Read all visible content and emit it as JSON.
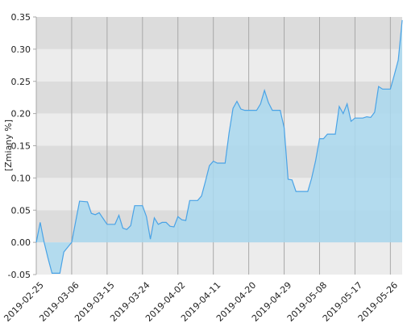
{
  "chart_data": {
    "type": "area",
    "y_label": "[Zmiany %]",
    "x": [
      "2019-02-25",
      "2019-02-26",
      "2019-02-27",
      "2019-02-28",
      "2019-03-01",
      "2019-03-03",
      "2019-03-04",
      "2019-03-06",
      "2019-03-08",
      "2019-03-10",
      "2019-03-11",
      "2019-03-12",
      "2019-03-13",
      "2019-03-14",
      "2019-03-15",
      "2019-03-17",
      "2019-03-18",
      "2019-03-19",
      "2019-03-20",
      "2019-03-21",
      "2019-03-22",
      "2019-03-24",
      "2019-03-25",
      "2019-03-26",
      "2019-03-27",
      "2019-03-28",
      "2019-03-29",
      "2019-03-30",
      "2019-03-31",
      "2019-04-01",
      "2019-04-02",
      "2019-04-03",
      "2019-04-04",
      "2019-04-05",
      "2019-04-07",
      "2019-04-08",
      "2019-04-09",
      "2019-04-10",
      "2019-04-11",
      "2019-04-12",
      "2019-04-14",
      "2019-04-15",
      "2019-04-16",
      "2019-04-17",
      "2019-04-18",
      "2019-04-19",
      "2019-04-21",
      "2019-04-22",
      "2019-04-23",
      "2019-04-24",
      "2019-04-25",
      "2019-04-26",
      "2019-04-28",
      "2019-04-29",
      "2019-04-30",
      "2019-05-01",
      "2019-05-02",
      "2019-05-05",
      "2019-05-06",
      "2019-05-07",
      "2019-05-08",
      "2019-05-09",
      "2019-05-10",
      "2019-05-12",
      "2019-05-13",
      "2019-05-14",
      "2019-05-15",
      "2019-05-16",
      "2019-05-17",
      "2019-05-19",
      "2019-05-20",
      "2019-05-21",
      "2019-05-22",
      "2019-05-23",
      "2019-05-24",
      "2019-05-26",
      "2019-05-27",
      "2019-05-28",
      "2019-05-29"
    ],
    "values": [
      0.0,
      0.031,
      0.0,
      -0.025,
      -0.048,
      -0.048,
      -0.015,
      0.0,
      0.064,
      0.063,
      0.045,
      0.043,
      0.046,
      0.037,
      0.028,
      0.028,
      0.042,
      0.022,
      0.02,
      0.026,
      0.057,
      0.057,
      0.04,
      0.005,
      0.038,
      0.028,
      0.031,
      0.031,
      0.025,
      0.024,
      0.04,
      0.035,
      0.034,
      0.065,
      0.065,
      0.072,
      0.095,
      0.119,
      0.126,
      0.123,
      0.123,
      0.17,
      0.208,
      0.219,
      0.207,
      0.205,
      0.205,
      0.205,
      0.215,
      0.236,
      0.217,
      0.205,
      0.205,
      0.178,
      0.098,
      0.097,
      0.079,
      0.079,
      0.1,
      0.127,
      0.161,
      0.161,
      0.168,
      0.168,
      0.211,
      0.2,
      0.215,
      0.188,
      0.193,
      0.193,
      0.195,
      0.194,
      0.202,
      0.242,
      0.238,
      0.238,
      0.26,
      0.283,
      0.345
    ],
    "line_color": "#4aa3e6",
    "fill_color": "#a9d8ee",
    "band_colors": [
      "#ececec",
      "#dcdcdc"
    ],
    "grid_color": "#a8a8a8",
    "xlim": [
      "2019-02-25",
      "2019-05-29"
    ],
    "xticks": [
      "2019-02-25",
      "2019-03-06",
      "2019-03-15",
      "2019-03-24",
      "2019-04-02",
      "2019-04-11",
      "2019-04-20",
      "2019-04-29",
      "2019-05-08",
      "2019-05-17",
      "2019-05-26"
    ],
    "ylim": [
      -0.05,
      0.35
    ],
    "yticks": [
      {
        "value": -0.05,
        "label": "-0.05"
      },
      {
        "value": 0,
        "label": "0.00"
      },
      0.05,
      {
        "value": 0.1,
        "label": "0.10"
      },
      0.15,
      {
        "value": 0.2,
        "label": "0.20"
      },
      0.25,
      {
        "value": 0.3,
        "label": "0.30"
      },
      0.35
    ]
  }
}
